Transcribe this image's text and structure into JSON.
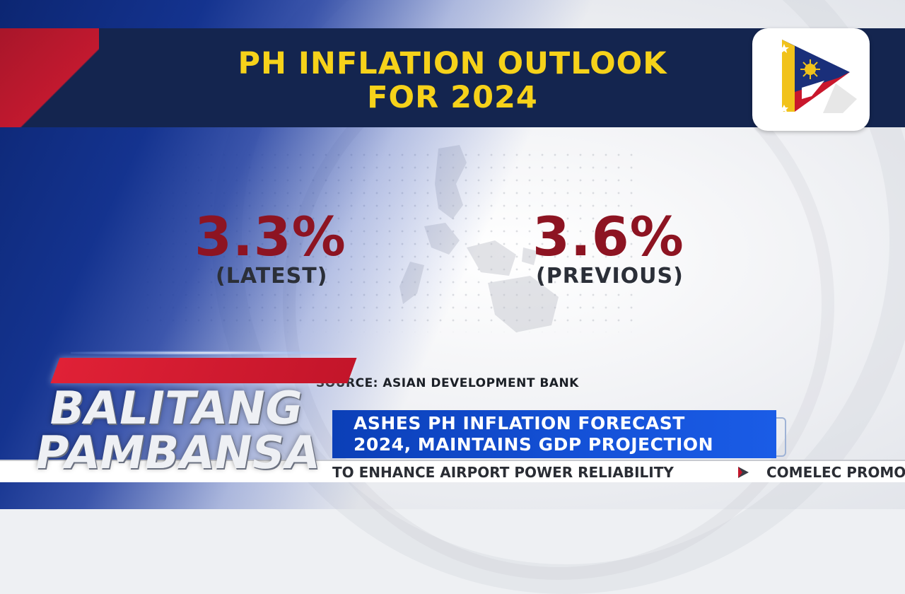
{
  "header": {
    "title_line1": "PH INFLATION OUTLOOK",
    "title_line2": "FOR 2024"
  },
  "stats": {
    "latest": {
      "value": "3.3%",
      "label": "(LATEST)"
    },
    "previous": {
      "value": "3.6%",
      "label": "(PREVIOUS)"
    }
  },
  "source": "SOURCE: ASIAN DEVELOPMENT BANK",
  "show": {
    "line1": "BALITANG",
    "line2": "PAMBANSA"
  },
  "headline": {
    "line1": "ASHES PH INFLATION FORECAST",
    "line2": "2024, MAINTAINS GDP PROJECTION"
  },
  "ticker": {
    "item1": "TO ENHANCE AIRPORT POWER RELIABILITY",
    "item2": "COMELEC PROMO"
  },
  "colors": {
    "header_bg": "#14254f",
    "title": "#f6d21a",
    "stat_value": "#8d1422",
    "headline_bg": "#1552d9",
    "accent_red": "#c3152a"
  },
  "icons": {
    "channel_logo": "ptv-philippine-flag-logo-icon",
    "ticker_separator": "play-triangle-icon"
  }
}
